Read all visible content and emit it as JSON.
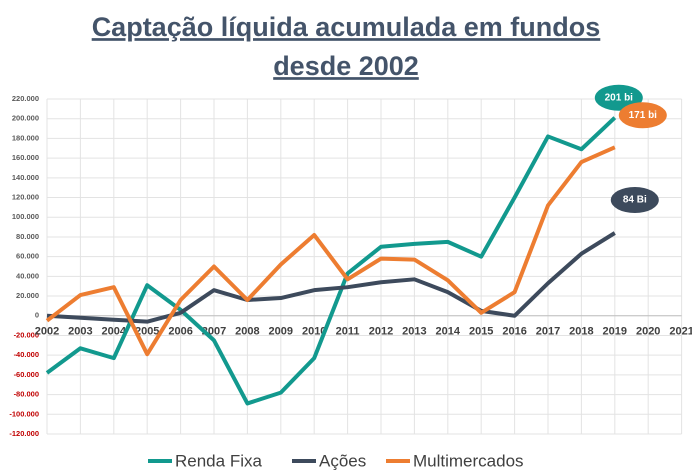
{
  "chart_data": {
    "type": "line",
    "title": [
      "Captação líquida acumulada em fundos",
      "desde 2002"
    ],
    "categories": [
      "2002",
      "2003",
      "2004",
      "2005",
      "2006",
      "2007",
      "2008",
      "2009",
      "2010",
      "2011",
      "2012",
      "2013",
      "2014",
      "2015",
      "2016",
      "2017",
      "2018",
      "2019",
      "2020",
      "2021"
    ],
    "series": [
      {
        "name": "Renda Fixa",
        "color": "#12998e",
        "values": [
          -58000,
          -33000,
          -43000,
          31000,
          6000,
          -25000,
          -89000,
          -78000,
          -43000,
          43000,
          70000,
          73000,
          75000,
          60000,
          120000,
          182000,
          169000,
          201000,
          null,
          null
        ],
        "value_labels": [
          null,
          null,
          null,
          null,
          null,
          null,
          null,
          null,
          null,
          null,
          null,
          null,
          null,
          null,
          null,
          null,
          null,
          "201 bi",
          null,
          null
        ]
      },
      {
        "name": "Ações",
        "color": "#3d4a5c",
        "values": [
          0,
          -2000,
          -4000,
          -6000,
          3000,
          26000,
          16000,
          18000,
          26000,
          29000,
          34000,
          37000,
          24000,
          5000,
          0,
          33000,
          63000,
          84000,
          null,
          null
        ],
        "value_labels": [
          null,
          null,
          null,
          null,
          null,
          null,
          null,
          null,
          null,
          null,
          null,
          null,
          null,
          null,
          null,
          null,
          null,
          "84 Bi",
          null,
          null
        ]
      },
      {
        "name": "Multimercados",
        "color": "#ed7d31",
        "values": [
          -5000,
          21000,
          29000,
          -39000,
          16000,
          50000,
          16000,
          52000,
          82000,
          37000,
          58000,
          57000,
          36000,
          3000,
          24000,
          112000,
          156000,
          171000,
          null,
          null
        ],
        "value_labels": [
          null,
          null,
          null,
          null,
          null,
          null,
          null,
          null,
          null,
          null,
          null,
          null,
          null,
          null,
          null,
          null,
          null,
          "171 bi",
          null,
          null
        ]
      }
    ],
    "ylim": [
      -120000,
      220000
    ],
    "yticks": [
      {
        "value": -120000,
        "label": "-120.000"
      },
      {
        "value": -100000,
        "label": "-100.000"
      },
      {
        "value": -80000,
        "label": "-80.000"
      },
      {
        "value": -60000,
        "label": "-60.000"
      },
      {
        "value": -40000,
        "label": "-40.000"
      },
      {
        "value": -20000,
        "label": "-20.000"
      },
      0,
      {
        "value": 20000,
        "label": "20.000"
      },
      {
        "value": 40000,
        "label": "40.000"
      },
      {
        "value": 60000,
        "label": "60.000"
      },
      {
        "value": 80000,
        "label": "80.000"
      },
      {
        "value": 100000,
        "label": "100.000"
      },
      {
        "value": 120000,
        "label": "120.000"
      },
      {
        "value": 140000,
        "label": "140.000"
      },
      {
        "value": 160000,
        "label": "160.000"
      },
      {
        "value": 180000,
        "label": "180.000"
      },
      {
        "value": 200000,
        "label": "200.000"
      },
      {
        "value": 220000,
        "label": "220.000"
      }
    ],
    "grid": true,
    "legend": "bottom"
  }
}
